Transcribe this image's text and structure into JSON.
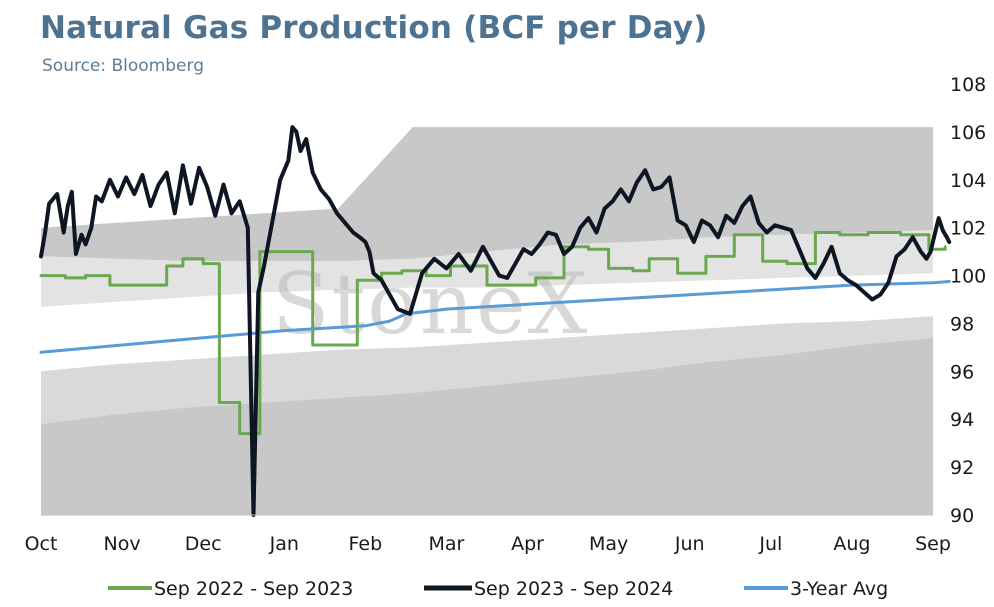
{
  "title": "Natural Gas Production (BCF per Day)",
  "subtitle": "Source: Bloomberg",
  "watermark": "StoneX",
  "chart_data": {
    "type": "line",
    "x_tick_labels": [
      "Oct",
      "Nov",
      "Dec",
      "Jan",
      "Feb",
      "Mar",
      "Apr",
      "May",
      "Jun",
      "Jul",
      "Aug",
      "Sep"
    ],
    "ylim": [
      90,
      108
    ],
    "y_ticks": [
      90,
      92,
      94,
      96,
      98,
      100,
      102,
      104,
      106,
      108
    ],
    "y_axis_side": "right",
    "grid": false,
    "legend_position": "bottom",
    "range_bands": [
      {
        "label": "",
        "color": "#c8c8c8",
        "upper": [
          102.0,
          102.2,
          102.4,
          102.6,
          102.8,
          106.2,
          106.2,
          106.2,
          106.2,
          106.2,
          106.2,
          106.2,
          106.2
        ],
        "lower": [
          100.8,
          100.7,
          100.6,
          100.6,
          100.6,
          100.7,
          101.0,
          101.3,
          101.4,
          101.6,
          101.7,
          101.8,
          101.9
        ]
      },
      {
        "label": "",
        "color": "#e3e3e3",
        "upper": [
          100.8,
          100.7,
          100.6,
          100.6,
          100.6,
          100.7,
          101.0,
          101.3,
          101.4,
          101.6,
          101.7,
          101.8,
          101.9
        ],
        "lower": [
          98.7,
          98.9,
          99.1,
          99.3,
          99.4,
          99.5,
          99.5,
          99.6,
          99.7,
          99.8,
          99.9,
          100.0,
          100.1
        ]
      },
      {
        "label": "",
        "color": "#d9d9d9",
        "upper": [
          96.0,
          96.3,
          96.5,
          96.7,
          96.9,
          97.0,
          97.2,
          97.4,
          97.6,
          97.8,
          98.0,
          98.1,
          98.3
        ],
        "lower": [
          93.8,
          94.2,
          94.5,
          94.7,
          94.9,
          95.1,
          95.4,
          95.7,
          96.0,
          96.4,
          96.7,
          97.1,
          97.4
        ]
      },
      {
        "label": "",
        "color": "#c8c8c8",
        "upper": [
          93.8,
          94.2,
          94.5,
          94.7,
          94.9,
          95.1,
          95.4,
          95.7,
          96.0,
          96.4,
          96.7,
          97.1,
          97.4
        ],
        "lower": [
          90,
          90,
          90,
          90,
          90,
          90,
          90,
          90,
          90,
          90,
          90,
          90,
          90
        ]
      }
    ],
    "series": [
      {
        "name": "Sep 2022 - Sep 2023",
        "color": "#6aa84f",
        "step": true,
        "x": [
          0,
          0.3,
          0.55,
          0.85,
          1.0,
          1.3,
          1.55,
          1.75,
          2.0,
          2.2,
          2.45,
          2.7,
          2.9,
          3.35,
          3.9,
          4.2,
          4.45,
          4.75,
          5.05,
          5.5,
          6.1,
          6.45,
          6.75,
          7.0,
          7.3,
          7.5,
          7.85,
          8.2,
          8.55,
          8.9,
          9.2,
          9.55,
          9.85,
          10.2,
          10.6,
          10.95,
          11.15
        ],
        "y": [
          100.0,
          99.9,
          100.0,
          99.6,
          99.6,
          99.6,
          100.4,
          100.7,
          100.5,
          94.7,
          93.4,
          101.0,
          101.0,
          97.1,
          99.8,
          100.1,
          100.2,
          100.0,
          100.4,
          99.6,
          99.9,
          101.2,
          101.1,
          100.3,
          100.2,
          100.7,
          100.1,
          100.8,
          101.7,
          100.6,
          100.5,
          101.8,
          101.7,
          101.8,
          101.7,
          101.1,
          101.2
        ]
      },
      {
        "name": "Sep 2023 - Sep 2024",
        "color": "#0e1623",
        "step": false,
        "x": [
          0,
          0.05,
          0.1,
          0.2,
          0.28,
          0.33,
          0.38,
          0.43,
          0.5,
          0.55,
          0.62,
          0.68,
          0.75,
          0.85,
          0.95,
          1.05,
          1.15,
          1.25,
          1.35,
          1.45,
          1.55,
          1.65,
          1.75,
          1.85,
          1.95,
          2.05,
          2.15,
          2.25,
          2.35,
          2.45,
          2.55,
          2.62,
          2.68,
          2.75,
          2.85,
          2.95,
          3.05,
          3.1,
          3.15,
          3.2,
          3.27,
          3.35,
          3.45,
          3.55,
          3.65,
          3.75,
          3.85,
          3.93,
          4.0,
          4.05,
          4.1,
          4.2,
          4.3,
          4.4,
          4.55,
          4.7,
          4.85,
          5.0,
          5.15,
          5.3,
          5.45,
          5.55,
          5.65,
          5.75,
          5.85,
          5.95,
          6.05,
          6.15,
          6.25,
          6.35,
          6.45,
          6.55,
          6.65,
          6.75,
          6.85,
          6.95,
          7.05,
          7.15,
          7.25,
          7.35,
          7.45,
          7.55,
          7.65,
          7.75,
          7.85,
          7.95,
          8.05,
          8.15,
          8.25,
          8.35,
          8.45,
          8.55,
          8.65,
          8.75,
          8.85,
          8.95,
          9.05,
          9.15,
          9.25,
          9.35,
          9.45,
          9.55,
          9.65,
          9.75,
          9.85,
          9.95,
          10.05,
          10.15,
          10.25,
          10.35,
          10.45,
          10.55,
          10.65,
          10.75,
          10.85,
          10.92,
          10.97,
          11.02,
          11.07,
          11.12,
          11.17,
          11.2
        ],
        "y": [
          100.8,
          101.8,
          103.0,
          103.4,
          101.8,
          102.9,
          103.5,
          100.9,
          101.7,
          101.3,
          102.0,
          103.3,
          103.1,
          104.0,
          103.3,
          104.1,
          103.4,
          104.2,
          102.9,
          103.8,
          104.3,
          102.6,
          104.6,
          103.0,
          104.5,
          103.7,
          102.5,
          103.8,
          102.6,
          103.1,
          102.0,
          90.0,
          99.3,
          100.4,
          102.2,
          104.0,
          104.8,
          106.2,
          106.0,
          105.2,
          105.7,
          104.3,
          103.6,
          103.2,
          102.6,
          102.2,
          101.8,
          101.6,
          101.4,
          101.0,
          100.1,
          99.8,
          99.2,
          98.6,
          98.4,
          100.1,
          100.7,
          100.3,
          100.9,
          100.2,
          101.2,
          100.6,
          100.0,
          99.9,
          100.5,
          101.1,
          100.9,
          101.3,
          101.8,
          101.7,
          100.9,
          101.2,
          102.0,
          102.4,
          101.8,
          102.8,
          103.1,
          103.6,
          103.1,
          103.9,
          104.4,
          103.6,
          103.7,
          104.1,
          102.3,
          102.1,
          101.4,
          102.3,
          102.1,
          101.6,
          102.5,
          102.2,
          102.9,
          103.3,
          102.2,
          101.8,
          102.1,
          102.0,
          101.9,
          101.1,
          100.3,
          99.9,
          100.5,
          101.2,
          100.1,
          99.8,
          99.6,
          99.3,
          99.0,
          99.2,
          99.7,
          100.8,
          101.1,
          101.6,
          101.0,
          100.7,
          101.0,
          101.7,
          102.4,
          101.9,
          101.6,
          101.4
        ]
      },
      {
        "name": "3-Year Avg",
        "color": "#5b9bd5",
        "step": false,
        "x": [
          0,
          1,
          2,
          3,
          4,
          4.3,
          4.5,
          5,
          6,
          7,
          8,
          9,
          10,
          11,
          11.2
        ],
        "y": [
          96.8,
          97.1,
          97.4,
          97.7,
          97.9,
          98.1,
          98.4,
          98.6,
          98.8,
          99.0,
          99.2,
          99.4,
          99.6,
          99.7,
          99.75
        ]
      }
    ]
  }
}
